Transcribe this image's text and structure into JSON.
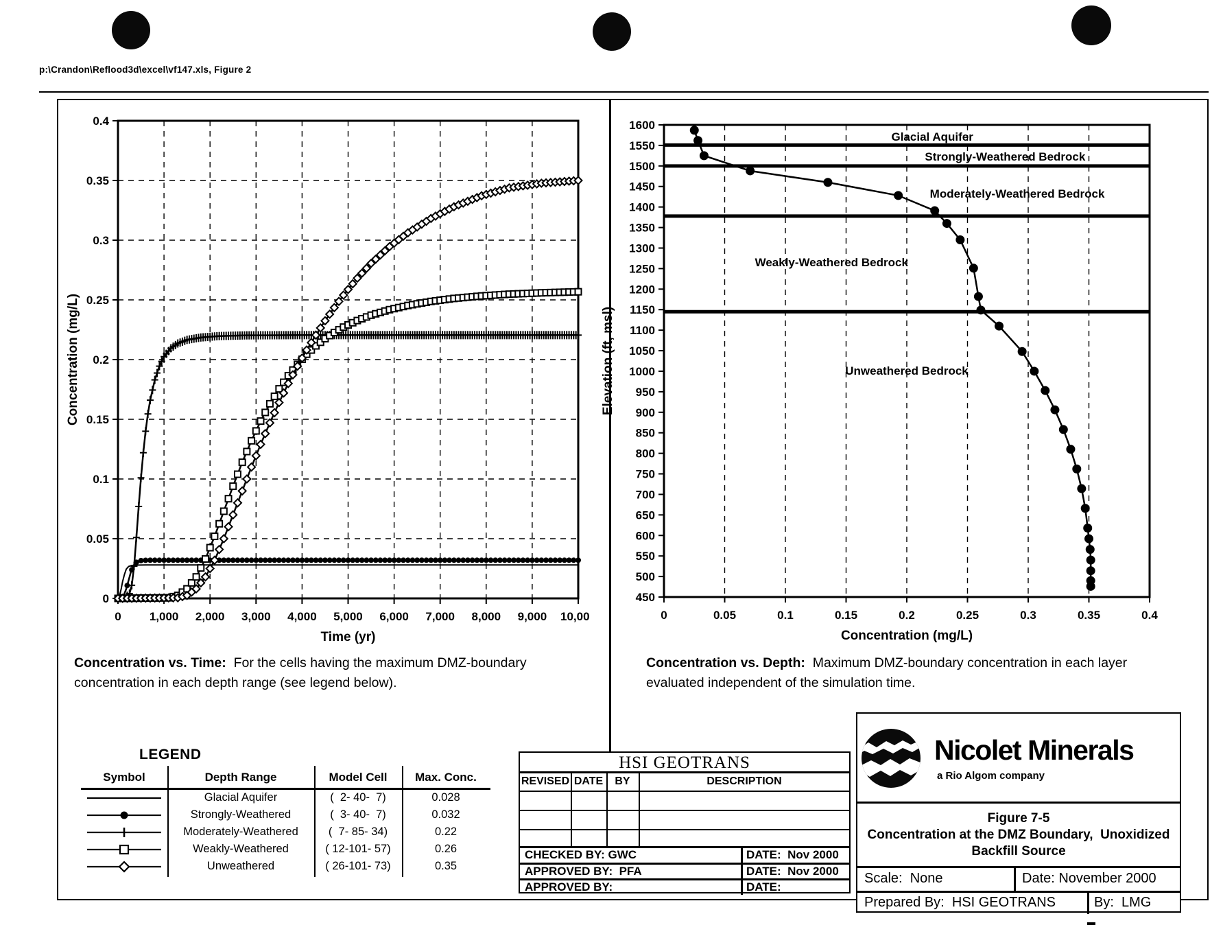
{
  "page": {
    "header_path": "p:\\Crandon\\Reflood3d\\excel\\vf147.xls, Figure 2"
  },
  "left_caption": {
    "lead": "Concentration vs. Time:",
    "rest": "  For the cells having the maximum DMZ-boundary concentration in each depth range (see legend below)."
  },
  "right_caption": {
    "lead": "Concentration vs. Depth:",
    "rest": "  Maximum DMZ-boundary concentration in each layer evaluated independent of the simulation time."
  },
  "legend": {
    "title": "LEGEND",
    "headers": [
      "Symbol",
      "Depth Range",
      "Model Cell",
      "Max. Conc."
    ],
    "rows": [
      {
        "symbol": "line",
        "depth_range": "Glacial Aquifer",
        "model_cell": "(  2- 40-  7)",
        "max_conc": "0.028"
      },
      {
        "symbol": "circle",
        "depth_range": "Strongly-Weathered",
        "model_cell": "(  3- 40-  7)",
        "max_conc": "0.032"
      },
      {
        "symbol": "plus",
        "depth_range": "Moderately-Weathered",
        "model_cell": "(  7- 85- 34)",
        "max_conc": "0.22"
      },
      {
        "symbol": "square",
        "depth_range": "Weakly-Weathered",
        "model_cell": "( 12-101- 57)",
        "max_conc": "0.26"
      },
      {
        "symbol": "diamond",
        "depth_range": "Unweathered",
        "model_cell": "( 26-101- 73)",
        "max_conc": "0.35"
      }
    ]
  },
  "revision_table": {
    "title": "HSI GEOTRANS",
    "columns": [
      "REVISED",
      "DATE",
      "BY",
      "DESCRIPTION"
    ],
    "footer_rows": [
      {
        "left": "CHECKED BY: GWC",
        "right": "DATE:  Nov 2000"
      },
      {
        "left": "APPROVED BY:  PFA",
        "right": "DATE:  Nov 2000"
      },
      {
        "left": "APPROVED BY:",
        "right": "DATE:"
      }
    ]
  },
  "title_block": {
    "company": "Nicolet Minerals",
    "company_sub": "a Rio Algom company",
    "figure_no": "Figure 7-5",
    "figure_title_line1": "Concentration at the DMZ Boundary,  Unoxidized",
    "figure_title_line2": "Backfill Source",
    "scale_label": "Scale:  None",
    "date_label": "Date: November 2000",
    "prepared_label": "Prepared By:  HSI GEOTRANS",
    "by_label": "By:  LMG"
  },
  "chart_data": [
    {
      "type": "line",
      "title": "Concentration vs. Time",
      "xlabel": "Time (yr)",
      "ylabel": "Concentration (mg/L)",
      "xlim": [
        0,
        10000
      ],
      "ylim": [
        0,
        0.4
      ],
      "grid": {
        "vertical": true,
        "horizontal": true
      },
      "xticks": [
        0,
        1000,
        2000,
        3000,
        4000,
        5000,
        6000,
        7000,
        8000,
        9000,
        10000
      ],
      "xtick_labels": [
        "0",
        "1,000",
        "2,000",
        "3,000",
        "4,000",
        "5,000",
        "6,000",
        "7,000",
        "8,000",
        "9,000",
        "10,000"
      ],
      "yticks": [
        0,
        0.05,
        0.1,
        0.15,
        0.2,
        0.25,
        0.3,
        0.35,
        0.4
      ],
      "ytick_labels": [
        "0",
        "0.05",
        "0.1",
        "0.15",
        "0.2",
        "0.25",
        "0.3",
        "0.35",
        "0.4"
      ],
      "series": [
        {
          "name": "Glacial Aquifer",
          "marker": "none",
          "width": 2,
          "points": [
            [
              0,
              0
            ],
            [
              40,
              0.003
            ],
            [
              70,
              0.008
            ],
            [
              100,
              0.014
            ],
            [
              140,
              0.02
            ],
            [
              180,
              0.0245
            ],
            [
              230,
              0.0267
            ],
            [
              300,
              0.0276
            ],
            [
              400,
              0.0279
            ],
            [
              600,
              0.028
            ],
            [
              10000,
              0.028
            ]
          ]
        },
        {
          "name": "Strongly-Weathered",
          "marker": "circle",
          "marker_step": 100,
          "marker_size": 4,
          "width": 2.5,
          "points": [
            [
              0,
              0
            ],
            [
              80,
              0.0005
            ],
            [
              130,
              0.003
            ],
            [
              180,
              0.008
            ],
            [
              230,
              0.015
            ],
            [
              280,
              0.022
            ],
            [
              330,
              0.027
            ],
            [
              380,
              0.0298
            ],
            [
              440,
              0.0312
            ],
            [
              520,
              0.0318
            ],
            [
              650,
              0.032
            ],
            [
              10000,
              0.032
            ]
          ]
        },
        {
          "name": "Moderately-Weathered",
          "marker": "plus",
          "marker_step": 50,
          "width": 2.5,
          "points": [
            [
              0,
              0
            ],
            [
              150,
              0.0005
            ],
            [
              250,
              0.004
            ],
            [
              300,
              0.011
            ],
            [
              350,
              0.027
            ],
            [
              400,
              0.051
            ],
            [
              450,
              0.077
            ],
            [
              500,
              0.101
            ],
            [
              550,
              0.122
            ],
            [
              600,
              0.14
            ],
            [
              650,
              0.1545
            ],
            [
              700,
              0.166
            ],
            [
              800,
              0.183
            ],
            [
              900,
              0.1945
            ],
            [
              1000,
              0.2025
            ],
            [
              1150,
              0.2095
            ],
            [
              1300,
              0.2135
            ],
            [
              1500,
              0.2165
            ],
            [
              1800,
              0.2185
            ],
            [
              2200,
              0.2197
            ],
            [
              2800,
              0.2203
            ],
            [
              4000,
              0.2205
            ],
            [
              10000,
              0.2205
            ]
          ]
        },
        {
          "name": "Weakly-Weathered",
          "marker": "square",
          "marker_step": 100,
          "width": 2.5,
          "points": [
            [
              0,
              0
            ],
            [
              1100,
              0.0005
            ],
            [
              1300,
              0.0025
            ],
            [
              1500,
              0.008
            ],
            [
              1700,
              0.018
            ],
            [
              1900,
              0.033
            ],
            [
              2100,
              0.052
            ],
            [
              2300,
              0.073
            ],
            [
              2500,
              0.094
            ],
            [
              2700,
              0.114
            ],
            [
              2900,
              0.132
            ],
            [
              3100,
              0.1485
            ],
            [
              3300,
              0.163
            ],
            [
              3500,
              0.1755
            ],
            [
              3700,
              0.1865
            ],
            [
              3900,
              0.196
            ],
            [
              4100,
              0.2045
            ],
            [
              4300,
              0.2115
            ],
            [
              4500,
              0.2175
            ],
            [
              4700,
              0.2227
            ],
            [
              4900,
              0.2272
            ],
            [
              5200,
              0.2327
            ],
            [
              5500,
              0.2372
            ],
            [
              5900,
              0.2418
            ],
            [
              6300,
              0.2453
            ],
            [
              6800,
              0.2487
            ],
            [
              7300,
              0.2512
            ],
            [
              7900,
              0.2533
            ],
            [
              8500,
              0.2548
            ],
            [
              9200,
              0.2559
            ],
            [
              10000,
              0.2568
            ]
          ]
        },
        {
          "name": "Unweathered",
          "marker": "diamond",
          "marker_step": 100,
          "width": 2.5,
          "points": [
            [
              0,
              0
            ],
            [
              1300,
              0.0005
            ],
            [
              1500,
              0.0025
            ],
            [
              1700,
              0.008
            ],
            [
              1900,
              0.018
            ],
            [
              2100,
              0.032
            ],
            [
              2300,
              0.05
            ],
            [
              2500,
              0.07
            ],
            [
              2700,
              0.09
            ],
            [
              2900,
              0.11
            ],
            [
              3100,
              0.129
            ],
            [
              3300,
              0.147
            ],
            [
              3500,
              0.164
            ],
            [
              3700,
              0.18
            ],
            [
              3900,
              0.1945
            ],
            [
              4100,
              0.208
            ],
            [
              4300,
              0.2205
            ],
            [
              4500,
              0.2325
            ],
            [
              4700,
              0.2435
            ],
            [
              4900,
              0.254
            ],
            [
              5200,
              0.2682
            ],
            [
              5500,
              0.2806
            ],
            [
              5900,
              0.2946
            ],
            [
              6300,
              0.3062
            ],
            [
              6800,
              0.3182
            ],
            [
              7300,
              0.328
            ],
            [
              7900,
              0.3372
            ],
            [
              8500,
              0.3438
            ],
            [
              9200,
              0.3477
            ],
            [
              10000,
              0.35
            ]
          ]
        }
      ]
    },
    {
      "type": "scatter",
      "title": "Concentration vs. Depth",
      "xlabel": "Concentration (mg/L)",
      "ylabel": "Elevation (ft, msl)",
      "xlim": [
        0,
        0.4
      ],
      "ylim": [
        450,
        1600
      ],
      "grid": {
        "vertical": true,
        "horizontal": false
      },
      "xticks": [
        0,
        0.05,
        0.1,
        0.15,
        0.2,
        0.25,
        0.3,
        0.35,
        0.4
      ],
      "xtick_labels": [
        "0",
        "0.05",
        "0.1",
        "0.15",
        "0.2",
        "0.25",
        "0.3",
        "0.35",
        "0.4"
      ],
      "yticks": [
        450,
        500,
        550,
        600,
        650,
        700,
        750,
        800,
        850,
        900,
        950,
        1000,
        1050,
        1100,
        1150,
        1200,
        1250,
        1300,
        1350,
        1400,
        1450,
        1500,
        1550,
        1600
      ],
      "ytick_labels": [
        "450",
        "500",
        "550",
        "600",
        "650",
        "700",
        "750",
        "800",
        "850",
        "900",
        "950",
        "1000",
        "1050",
        "1100",
        "1150",
        "1200",
        "1250",
        "1300",
        "1350",
        "1400",
        "1450",
        "1500",
        "1550",
        "1600"
      ],
      "layer_boundaries": [
        1551,
        1500,
        1378,
        1145
      ],
      "layer_labels": [
        {
          "text": "Glacial Aquifer",
          "x": 0.221,
          "y": 1572
        },
        {
          "text": "Strongly-Weathered Bedrock",
          "x": 0.281,
          "y": 1523
        },
        {
          "text": "Moderately-Weathered Bedrock",
          "x": 0.291,
          "y": 1433
        },
        {
          "text": "Weakly-Weathered Bedrock",
          "x": 0.138,
          "y": 1266
        },
        {
          "text": "Unweathered Bedrock",
          "x": 0.2,
          "y": 1002
        }
      ],
      "series": [
        {
          "name": "Maximum DMZ-boundary concentration",
          "marker": "circle",
          "marker_size": 6.5,
          "width": 2.5,
          "points": [
            [
              0.025,
              1587
            ],
            [
              0.028,
              1562
            ],
            [
              0.033,
              1525
            ],
            [
              0.071,
              1488
            ],
            [
              0.135,
              1460
            ],
            [
              0.193,
              1428
            ],
            [
              0.223,
              1391
            ],
            [
              0.233,
              1360
            ],
            [
              0.244,
              1320
            ],
            [
              0.255,
              1251
            ],
            [
              0.259,
              1182
            ],
            [
              0.261,
              1149
            ],
            [
              0.276,
              1110
            ],
            [
              0.295,
              1048
            ],
            [
              0.305,
              1000
            ],
            [
              0.314,
              953
            ],
            [
              0.322,
              906
            ],
            [
              0.329,
              858
            ],
            [
              0.335,
              810
            ],
            [
              0.34,
              762
            ],
            [
              0.344,
              714
            ],
            [
              0.347,
              666
            ],
            [
              0.349,
              618
            ],
            [
              0.35,
              592
            ],
            [
              0.351,
              566
            ],
            [
              0.3515,
              540
            ],
            [
              0.3515,
              514
            ],
            [
              0.3515,
              490
            ],
            [
              0.3515,
              476
            ]
          ]
        }
      ]
    }
  ]
}
